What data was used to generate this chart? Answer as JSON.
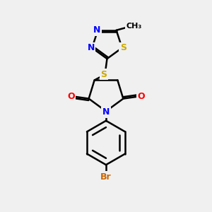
{
  "bg_color": "#f0f0f0",
  "bond_color": "#000000",
  "bond_width": 1.8,
  "atom_colors": {
    "N": "#0000FF",
    "O": "#FF0000",
    "S": "#CCAA00",
    "Br": "#CC6600",
    "C": "#000000"
  },
  "font_size_atom": 9,
  "font_size_small": 8
}
